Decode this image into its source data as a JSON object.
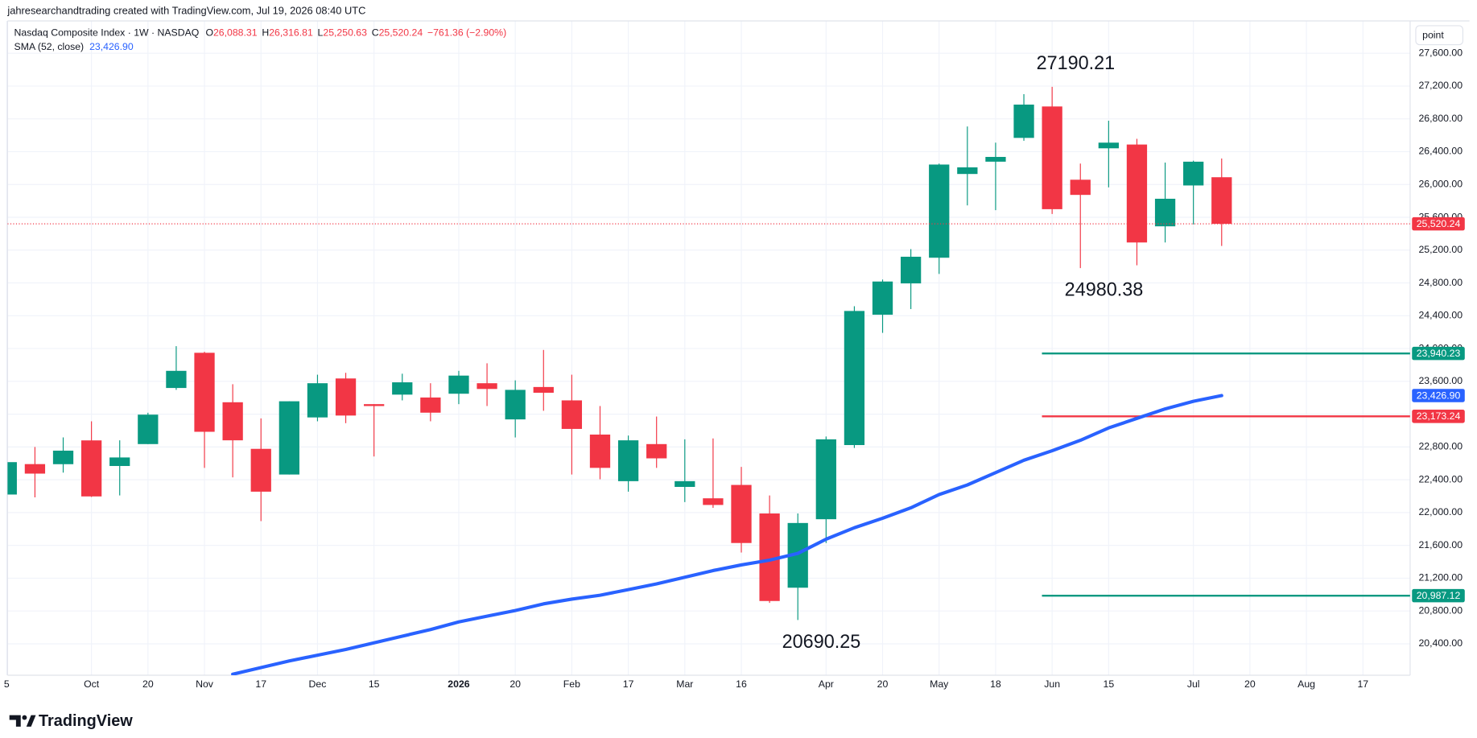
{
  "header": {
    "credit": "jahresearchandtrading created with TradingView.com, Jul 19, 2026 08:40 UTC"
  },
  "legend": {
    "symbol": "Nasdaq Composite Index · 1W · NASDAQ",
    "o_key": "O",
    "o_value": "26,088.31",
    "h_key": "H",
    "h_value": "26,316.81",
    "l_key": "L",
    "l_value": "25,250.63",
    "c_key": "C",
    "c_value": "25,520.24",
    "change": "−761.36 (−2.90%)",
    "sma_name": "SMA (52, close)",
    "sma_value": "23,426.90"
  },
  "toolbar": {
    "scale_button": "point"
  },
  "footer": {
    "brand": "TradingView"
  },
  "chart_data": {
    "type": "candlestick",
    "x": [
      0,
      1,
      2,
      3,
      4,
      5,
      6,
      7,
      8,
      9,
      10,
      11,
      12,
      13,
      14,
      15,
      16,
      17,
      18,
      19,
      20,
      21,
      22,
      23,
      24,
      25,
      26,
      27,
      28,
      29,
      30,
      31,
      32,
      33,
      34,
      35,
      36,
      37,
      38,
      39,
      40,
      41,
      42,
      43
    ],
    "series": [
      {
        "type": "candlestick",
        "up_color": "#089981",
        "down_color": "#f23645",
        "open": [
          22220,
          22591,
          22590,
          22880,
          22568,
          22835,
          23519,
          23948,
          23345,
          22777,
          22464,
          23160,
          23635,
          23322,
          23438,
          23403,
          23449,
          23577,
          23136,
          23531,
          23368,
          22951,
          22383,
          22835,
          22313,
          22174,
          22337,
          21989,
          21084,
          21919,
          22823,
          24412,
          24794,
          25107,
          26128,
          26278,
          26568,
          26951,
          26058,
          26441,
          26487,
          25490,
          25988,
          26088.31
        ],
        "high": [
          22640,
          22800,
          22916,
          23113,
          22881,
          23217,
          24029,
          23960,
          23565,
          23148,
          23357,
          23681,
          23704,
          23322,
          23693,
          23577,
          23728,
          23820,
          23612,
          23983,
          23681,
          23299,
          22939,
          23171,
          22893,
          22904,
          22557,
          22209,
          21989,
          22927,
          24516,
          24841,
          25212,
          26255,
          26707,
          26510,
          27101,
          27190.21,
          26255,
          26777,
          26557,
          26267,
          26290,
          26316.81
        ],
        "low": [
          22200,
          22185,
          22487,
          22190,
          22209,
          22835,
          23496,
          22545,
          22429,
          21896,
          22464,
          23113,
          23090,
          22684,
          23368,
          23113,
          23322,
          23299,
          22916,
          23241,
          22464,
          22406,
          22255,
          22545,
          22128,
          22058,
          21513,
          20899,
          20690.25,
          21629,
          22788,
          24191,
          24481,
          24910,
          25745,
          25687,
          26533,
          25640,
          24980.38,
          25965,
          25015,
          25293,
          25513,
          25250.63
        ],
        "close": [
          22615,
          22475,
          22755,
          22197,
          22672,
          23194,
          23728,
          22985,
          22881,
          22255,
          23357,
          23577,
          23183,
          23299,
          23588,
          23218,
          23670,
          23507,
          23496,
          23461,
          23020,
          22545,
          22881,
          22661,
          22383,
          22093,
          21629,
          20922,
          21873,
          22893,
          24458,
          24817,
          25119,
          26243,
          26209,
          26336,
          26974,
          25699,
          25873,
          26510,
          25293,
          25826,
          26278,
          25520.24
        ],
        "last_value_label": "25,520.24"
      },
      {
        "type": "line",
        "color": "#2962ff",
        "values": [
          null,
          null,
          null,
          null,
          null,
          null,
          null,
          null,
          20029,
          20110,
          20191,
          20261,
          20331,
          20412,
          20493,
          20574,
          20667,
          20737,
          20806,
          20887,
          20945,
          20992,
          21061,
          21131,
          21212,
          21293,
          21362,
          21420,
          21502,
          21676,
          21815,
          21931,
          22058,
          22220,
          22337,
          22487,
          22638,
          22754,
          22881,
          23032,
          23148,
          23264,
          23357,
          23426.9
        ],
        "last_value_label": "23,426.90"
      }
    ],
    "levels": [
      {
        "value": 23940.23,
        "label": "23,940.23",
        "color": "#089981",
        "x0": 37
      },
      {
        "value": 23173.24,
        "label": "23,173.24",
        "color": "#f23645",
        "x0": 37
      },
      {
        "value": 20987.12,
        "label": "20,987.12",
        "color": "#089981",
        "x0": 37
      }
    ],
    "annotations": [
      {
        "text": "27190.21",
        "x": 37,
        "y": 27190.21,
        "position": "above"
      },
      {
        "text": "24980.38",
        "x": 38,
        "y": 24980.38,
        "position": "below"
      },
      {
        "text": "20690.25",
        "x": 28,
        "y": 20690.25,
        "position": "below"
      }
    ],
    "xlim": [
      0.03,
      49.67
    ],
    "ylim": [
      20017,
      27994
    ],
    "xticks": [
      {
        "value": 0,
        "label": "5"
      },
      {
        "value": 3,
        "label": "Oct"
      },
      {
        "value": 5,
        "label": "20"
      },
      {
        "value": 7,
        "label": "Nov"
      },
      {
        "value": 9,
        "label": "17"
      },
      {
        "value": 11,
        "label": "Dec"
      },
      {
        "value": 13,
        "label": "15"
      },
      {
        "value": 16,
        "label": "2026"
      },
      {
        "value": 18,
        "label": "20"
      },
      {
        "value": 20,
        "label": "Feb"
      },
      {
        "value": 22,
        "label": "17"
      },
      {
        "value": 24,
        "label": "Mar"
      },
      {
        "value": 26,
        "label": "16"
      },
      {
        "value": 29,
        "label": "Apr"
      },
      {
        "value": 31,
        "label": "20"
      },
      {
        "value": 33,
        "label": "May"
      },
      {
        "value": 35,
        "label": "18"
      },
      {
        "value": 37,
        "label": "Jun"
      },
      {
        "value": 39,
        "label": "15"
      },
      {
        "value": 42,
        "label": "Jul"
      },
      {
        "value": 44,
        "label": "20"
      },
      {
        "value": 46,
        "label": "Aug"
      },
      {
        "value": 48,
        "label": "17"
      }
    ],
    "yticks": [
      {
        "value": 20400,
        "label": "20,400.00"
      },
      {
        "value": 20800,
        "label": "20,800.00"
      },
      {
        "value": 21200,
        "label": "21,200.00"
      },
      {
        "value": 21600,
        "label": "21,600.00"
      },
      {
        "value": 22000,
        "label": "22,000.00"
      },
      {
        "value": 22400,
        "label": "22,400.00"
      },
      {
        "value": 22800,
        "label": "22,800.00"
      },
      {
        "value": 23200,
        "label": "23,200.00"
      },
      {
        "value": 23600,
        "label": "23,600.00"
      },
      {
        "value": 24000,
        "label": "24,000.00"
      },
      {
        "value": 24400,
        "label": "24,400.00"
      },
      {
        "value": 24800,
        "label": "24,800.00"
      },
      {
        "value": 25200,
        "label": "25,200.00"
      },
      {
        "value": 25600,
        "label": "25,600.00"
      },
      {
        "value": 26000,
        "label": "26,000.00"
      },
      {
        "value": 26400,
        "label": "26,400.00"
      },
      {
        "value": 26800,
        "label": "26,800.00"
      },
      {
        "value": 27200,
        "label": "27,200.00"
      },
      {
        "value": 27600,
        "label": "27,600.00"
      }
    ],
    "grid": true
  }
}
